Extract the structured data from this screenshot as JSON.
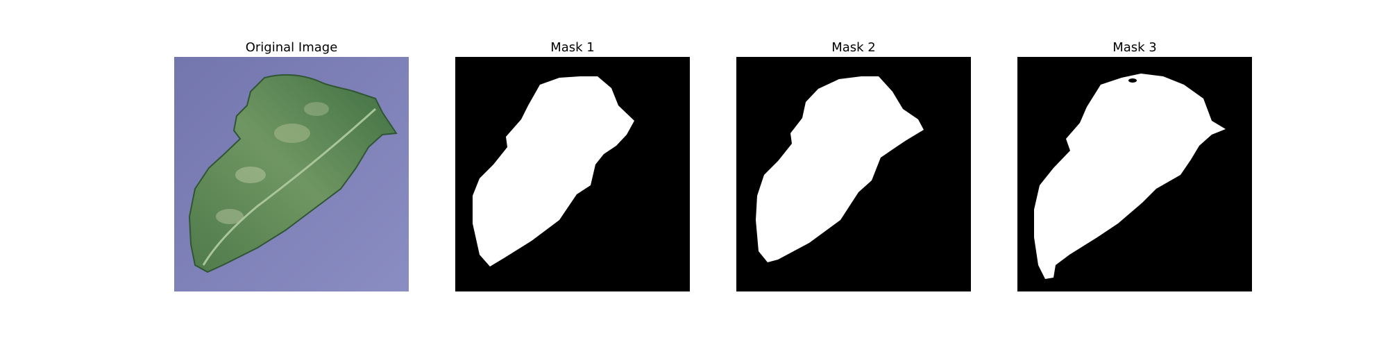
{
  "figure": {
    "panels": [
      {
        "title": "Original Image",
        "content": "leaf-photo"
      },
      {
        "title": "Mask 1",
        "content": "binary-mask"
      },
      {
        "title": "Mask 2",
        "content": "binary-mask"
      },
      {
        "title": "Mask 3",
        "content": "binary-mask"
      }
    ]
  },
  "colors": {
    "background_photo": "#7c7fb6",
    "leaf_dark": "#3d6a40",
    "leaf_light": "#8fae7c",
    "mask_background": "#000000",
    "mask_foreground": "#ffffff",
    "page_background": "#ffffff"
  }
}
